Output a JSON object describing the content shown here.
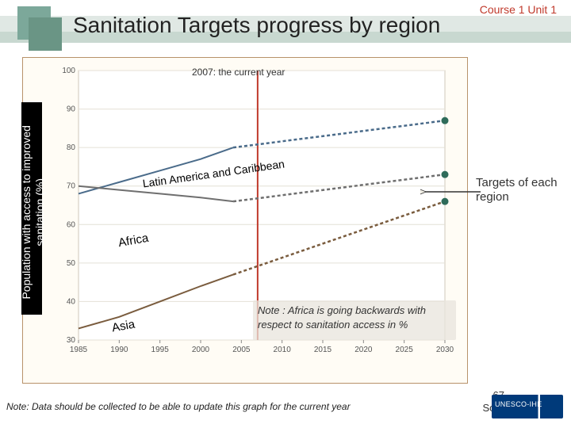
{
  "meta": {
    "course_tag": "Course 1 Unit 1",
    "title": "Sanitation Targets progress by region",
    "slide_number": "67",
    "source_label": "Source: (10)",
    "footnote": "Note: Data should be collected to be able to update this graph for the current year"
  },
  "chart": {
    "type": "line",
    "background_color": "#fffcf5",
    "border_color": "#b8926a",
    "plot_bg": "#ffffff",
    "x": {
      "min": 1985,
      "max": 2030,
      "ticks": [
        1985,
        1990,
        1995,
        2000,
        2005,
        2010,
        2015,
        2020,
        2025,
        2030
      ],
      "label_fontsize": 10,
      "label_color": "#555555"
    },
    "y": {
      "min": 30,
      "max": 100,
      "ticks": [
        30,
        40,
        50,
        60,
        70,
        80,
        90,
        100
      ],
      "label": "Population with access to improved sanitation (%)",
      "label_fontsize": 14,
      "label_color": "#ffffff",
      "label_bg": "#000000",
      "tick_fontsize": 10,
      "tick_color": "#555555"
    },
    "gridline_color": "#e4e0d6",
    "gridline_width": 1,
    "current_year_line": {
      "x": 2007,
      "color": "#c0392b",
      "width": 2,
      "label": "2007: the current year"
    },
    "series": [
      {
        "name": "Latin America and Caribbean — observed",
        "color": "#4a6b8a",
        "width": 2,
        "dash": "none",
        "points": [
          [
            1985,
            68
          ],
          [
            1990,
            71
          ],
          [
            1995,
            74
          ],
          [
            2000,
            77
          ],
          [
            2004,
            80
          ]
        ]
      },
      {
        "name": "Latin America and Caribbean — target",
        "color": "#4a6b8a",
        "width": 2.5,
        "dash": "4 3",
        "points": [
          [
            2004,
            80
          ],
          [
            2030,
            87
          ]
        ],
        "target_point": [
          2030,
          87
        ],
        "target_color": "#2e6b5a"
      },
      {
        "name": "Africa — observed",
        "color": "#6f6f6f",
        "width": 2,
        "dash": "none",
        "points": [
          [
            1985,
            70
          ],
          [
            1990,
            69
          ],
          [
            1995,
            68
          ],
          [
            2000,
            67
          ],
          [
            2004,
            66
          ]
        ]
      },
      {
        "name": "Africa — target",
        "color": "#6f6f6f",
        "width": 2.5,
        "dash": "4 3",
        "points": [
          [
            2004,
            66
          ],
          [
            2030,
            73
          ]
        ],
        "target_point": [
          2030,
          73
        ],
        "target_color": "#2e6b5a"
      },
      {
        "name": "Asia — observed",
        "color": "#7a5c3e",
        "width": 2,
        "dash": "none",
        "points": [
          [
            1985,
            33
          ],
          [
            1990,
            36
          ],
          [
            1995,
            40
          ],
          [
            2000,
            44
          ],
          [
            2004,
            47
          ]
        ]
      },
      {
        "name": "Asia — target",
        "color": "#7a5c3e",
        "width": 2.5,
        "dash": "4 3",
        "points": [
          [
            2004,
            47
          ],
          [
            2030,
            66
          ]
        ],
        "target_point": [
          2030,
          66
        ],
        "target_color": "#2e6b5a"
      }
    ],
    "inline_labels": {
      "lac": "Latin America and Caribbean",
      "africa": "Africa",
      "asia": "Asia"
    },
    "arrow_targets_label": "Targets of each region",
    "note_box_text": "Note : Africa is going backwards with respect to sanitation access in %"
  }
}
